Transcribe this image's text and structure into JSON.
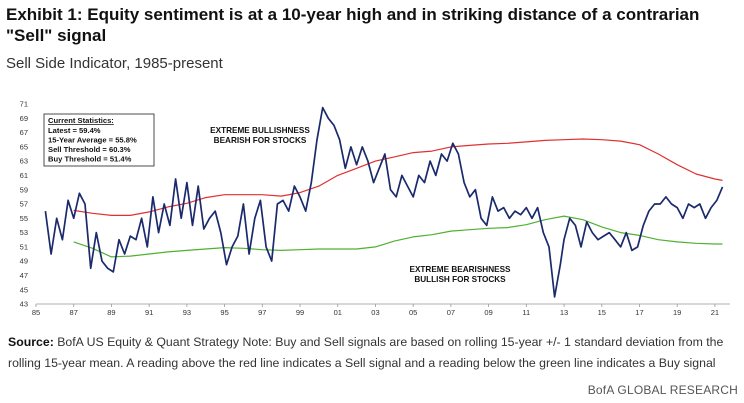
{
  "title": "Exhibit 1: Equity sentiment is at a 10-year high and in striking distance of a contrarian \"Sell\" signal",
  "subtitle": "Sell Side Indicator, 1985-present",
  "source_label": "Source:",
  "source_text": " BofA US Equity & Quant Strategy Note: Buy and Sell signals are based on rolling 15-year +/- 1 standard deviation from the rolling 15-year mean. A reading above the red line indicates a Sell signal and a reading below the green line indicates a Buy signal",
  "footer": "BofA GLOBAL RESEARCH",
  "chart_data": {
    "type": "line",
    "ylim": [
      43,
      71
    ],
    "yticks": [
      43,
      45,
      47,
      49,
      51,
      53,
      55,
      57,
      59,
      61,
      63,
      65,
      67,
      69,
      71
    ],
    "xlim": [
      1985,
      2021.8
    ],
    "xticks": [
      1985,
      1987,
      1989,
      1991,
      1993,
      1995,
      1997,
      1999,
      2001,
      2003,
      2005,
      2007,
      2009,
      2011,
      2013,
      2015,
      2017,
      2019,
      2021
    ],
    "xticklabels": [
      "85",
      "87",
      "89",
      "91",
      "93",
      "95",
      "97",
      "99",
      "01",
      "03",
      "05",
      "07",
      "09",
      "11",
      "13",
      "15",
      "17",
      "19",
      "21"
    ],
    "stats": {
      "heading": "Current Statistics:",
      "lines": [
        "Latest = 59.4%",
        "15-Year Average = 55.8%",
        "Sell Threshold = 60.3%",
        "Buy Threshold = 51.4%"
      ]
    },
    "annotations": {
      "top": [
        "EXTREME BULLISHNESS",
        "BEARISH FOR STOCKS"
      ],
      "bottom": [
        "EXTREME BEARISHNESS",
        "BULLISH FOR STOCKS"
      ]
    },
    "colors": {
      "indicator": "#1a2a6c",
      "sell": "#e03030",
      "buy": "#50b030"
    },
    "series": [
      {
        "key": "indicator",
        "x": [
          1985.5,
          1985.8,
          1986.1,
          1986.4,
          1986.7,
          1987.0,
          1987.3,
          1987.6,
          1987.9,
          1988.2,
          1988.5,
          1988.8,
          1989.1,
          1989.4,
          1989.7,
          1990.0,
          1990.3,
          1990.6,
          1990.9,
          1991.2,
          1991.5,
          1991.8,
          1992.1,
          1992.4,
          1992.7,
          1993.0,
          1993.3,
          1993.6,
          1993.9,
          1994.2,
          1994.5,
          1994.8,
          1995.1,
          1995.4,
          1995.7,
          1996.0,
          1996.3,
          1996.6,
          1996.9,
          1997.2,
          1997.5,
          1997.8,
          1998.1,
          1998.4,
          1998.7,
          1999.0,
          1999.3,
          1999.6,
          1999.9,
          2000.2,
          2000.5,
          2000.8,
          2001.1,
          2001.4,
          2001.7,
          2002.0,
          2002.3,
          2002.6,
          2002.9,
          2003.2,
          2003.5,
          2003.8,
          2004.1,
          2004.4,
          2004.7,
          2005.0,
          2005.3,
          2005.6,
          2005.9,
          2006.2,
          2006.5,
          2006.8,
          2007.1,
          2007.4,
          2007.7,
          2008.0,
          2008.3,
          2008.6,
          2008.9,
          2009.2,
          2009.5,
          2009.8,
          2010.1,
          2010.4,
          2010.7,
          2011.0,
          2011.3,
          2011.6,
          2011.9,
          2012.2,
          2012.5,
          2012.8,
          2013.0,
          2013.3,
          2013.6,
          2013.9,
          2014.2,
          2014.5,
          2014.8,
          2015.1,
          2015.4,
          2015.7,
          2016.0,
          2016.3,
          2016.6,
          2016.9,
          2017.2,
          2017.5,
          2017.8,
          2018.1,
          2018.4,
          2018.7,
          2019.0,
          2019.3,
          2019.6,
          2019.9,
          2020.2,
          2020.5,
          2020.8,
          2021.1,
          2021.4
        ],
        "y": [
          56.0,
          50.0,
          55.0,
          52.0,
          57.5,
          55.0,
          58.5,
          57.0,
          48.0,
          53.0,
          49.0,
          48.0,
          47.5,
          52.0,
          50.0,
          52.5,
          52.0,
          55.0,
          51.0,
          58.0,
          53.0,
          57.0,
          54.0,
          60.5,
          55.0,
          60.0,
          54.0,
          59.5,
          53.5,
          55.0,
          56.0,
          53.0,
          48.5,
          51.0,
          52.5,
          57.0,
          50.0,
          55.0,
          57.5,
          51.0,
          49.0,
          57.0,
          57.5,
          56.0,
          59.5,
          58.0,
          56.0,
          60.0,
          66.0,
          70.5,
          69.0,
          68.0,
          66.0,
          62.0,
          65.0,
          62.5,
          65.0,
          63.0,
          60.0,
          62.0,
          64.0,
          59.0,
          58.0,
          61.0,
          59.5,
          58.0,
          61.0,
          60.0,
          63.0,
          61.0,
          64.0,
          63.0,
          65.5,
          64.0,
          60.0,
          58.0,
          59.0,
          55.0,
          54.0,
          58.0,
          56.0,
          56.5,
          55.0,
          56.0,
          55.5,
          56.5,
          55.0,
          56.5,
          53.0,
          51.0,
          44.0,
          48.5,
          52.0,
          55.0,
          54.0,
          51.0,
          54.5,
          53.0,
          52.0,
          52.5,
          53.0,
          52.0,
          51.0,
          53.0,
          50.5,
          51.0,
          54.0,
          56.0,
          57.0,
          57.0,
          58.0,
          57.0,
          56.5,
          55.0,
          57.0,
          56.5,
          57.0,
          55.0,
          56.5,
          57.5,
          59.4
        ]
      },
      {
        "key": "sell",
        "x": [
          1987.0,
          1988.0,
          1989.0,
          1990.0,
          1991.0,
          1992.0,
          1993.0,
          1994.0,
          1995.0,
          1996.0,
          1997.0,
          1998.0,
          1999.0,
          2000.0,
          2001.0,
          2002.0,
          2003.0,
          2004.0,
          2005.0,
          2006.0,
          2007.0,
          2008.0,
          2009.0,
          2010.0,
          2011.0,
          2012.0,
          2013.0,
          2014.0,
          2015.0,
          2016.0,
          2017.0,
          2018.0,
          2019.0,
          2020.0,
          2021.0,
          2021.4
        ],
        "y": [
          56.1,
          55.7,
          55.4,
          55.4,
          55.9,
          56.6,
          57.1,
          57.9,
          58.3,
          58.3,
          58.3,
          58.1,
          58.6,
          59.5,
          61.0,
          62.0,
          63.0,
          63.6,
          64.2,
          64.4,
          65.0,
          65.2,
          65.4,
          65.5,
          65.7,
          65.9,
          66.0,
          66.1,
          66.0,
          65.8,
          65.3,
          64.0,
          62.5,
          61.2,
          60.5,
          60.3
        ]
      },
      {
        "key": "buy",
        "x": [
          1987.0,
          1988.0,
          1989.0,
          1990.0,
          1991.0,
          1992.0,
          1993.0,
          1994.0,
          1995.0,
          1996.0,
          1997.0,
          1998.0,
          1999.0,
          2000.0,
          2001.0,
          2002.0,
          2003.0,
          2004.0,
          2005.0,
          2006.0,
          2007.0,
          2008.0,
          2009.0,
          2010.0,
          2011.0,
          2012.0,
          2013.0,
          2014.0,
          2015.0,
          2016.0,
          2017.0,
          2018.0,
          2019.0,
          2020.0,
          2021.0,
          2021.4
        ],
        "y": [
          51.7,
          50.8,
          49.6,
          49.7,
          50.0,
          50.3,
          50.5,
          50.7,
          50.9,
          50.8,
          50.6,
          50.5,
          50.6,
          50.7,
          50.7,
          50.7,
          51.0,
          51.8,
          52.4,
          52.7,
          53.2,
          53.4,
          53.6,
          53.7,
          54.1,
          54.8,
          55.3,
          54.8,
          53.8,
          53.0,
          52.6,
          52.0,
          51.7,
          51.5,
          51.4,
          51.4
        ]
      }
    ]
  }
}
